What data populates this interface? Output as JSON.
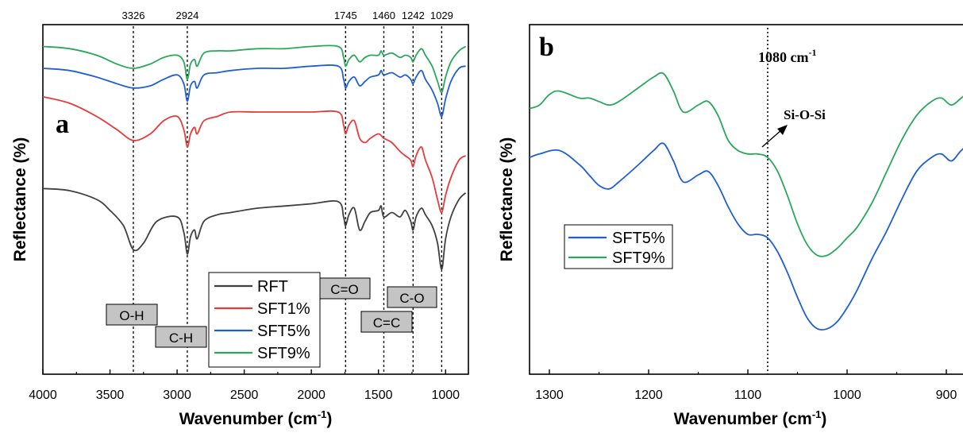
{
  "chart_data": [
    {
      "panel_label": "a",
      "type": "line",
      "xlabel": "Wavenumber (cm",
      "xlabel_sup": "-1",
      "xlabel_tail": ")",
      "ylabel": "Reflectance (%)",
      "xlim": [
        4000,
        830
      ],
      "x_reversed": true,
      "xticks": [
        "4000",
        "3500",
        "3000",
        "2500",
        "2000",
        "1500",
        "1000"
      ],
      "y_ticks_shown": false,
      "legend": {
        "placement": "lower-center",
        "entries": [
          "RFT",
          "SFT1%",
          "SFT5%",
          "SFT9%"
        ]
      },
      "series": [
        {
          "name": "RFT",
          "color": "#404040",
          "points": [
            [
              4000,
              85
            ],
            [
              3800,
              84
            ],
            [
              3600,
              80
            ],
            [
              3500,
              75
            ],
            [
              3400,
              68
            ],
            [
              3326,
              57
            ],
            [
              3250,
              60
            ],
            [
              3150,
              70
            ],
            [
              3000,
              72
            ],
            [
              2950,
              65
            ],
            [
              2924,
              55
            ],
            [
              2900,
              63
            ],
            [
              2870,
              66
            ],
            [
              2850,
              62
            ],
            [
              2800,
              70
            ],
            [
              2700,
              73
            ],
            [
              2600,
              74
            ],
            [
              2400,
              76
            ],
            [
              2200,
              77
            ],
            [
              2000,
              78
            ],
            [
              1800,
              79
            ],
            [
              1760,
              72
            ],
            [
              1745,
              68
            ],
            [
              1720,
              73
            ],
            [
              1680,
              76
            ],
            [
              1640,
              66
            ],
            [
              1600,
              70
            ],
            [
              1560,
              74
            ],
            [
              1500,
              75
            ],
            [
              1480,
              77
            ],
            [
              1460,
              72
            ],
            [
              1400,
              74
            ],
            [
              1340,
              72
            ],
            [
              1300,
              75
            ],
            [
              1260,
              70
            ],
            [
              1242,
              66
            ],
            [
              1220,
              72
            ],
            [
              1180,
              76
            ],
            [
              1150,
              73
            ],
            [
              1100,
              68
            ],
            [
              1060,
              60
            ],
            [
              1029,
              48
            ],
            [
              1000,
              62
            ],
            [
              960,
              72
            ],
            [
              900,
              80
            ],
            [
              850,
              83
            ]
          ]
        },
        {
          "name": "SFT1%",
          "color": "#e63b3b",
          "points": [
            [
              4000,
              127
            ],
            [
              3800,
              124
            ],
            [
              3600,
              118
            ],
            [
              3450,
              112
            ],
            [
              3326,
              107
            ],
            [
              3200,
              110
            ],
            [
              3100,
              116
            ],
            [
              3000,
              118
            ],
            [
              2950,
              112
            ],
            [
              2924,
              104
            ],
            [
              2900,
              110
            ],
            [
              2870,
              113
            ],
            [
              2850,
              110
            ],
            [
              2800,
              116
            ],
            [
              2700,
              118
            ],
            [
              2600,
              120
            ],
            [
              2400,
              120
            ],
            [
              2200,
              120
            ],
            [
              2000,
              120
            ],
            [
              1800,
              120
            ],
            [
              1760,
              114
            ],
            [
              1745,
              110
            ],
            [
              1720,
              114
            ],
            [
              1680,
              116
            ],
            [
              1640,
              108
            ],
            [
              1600,
              106
            ],
            [
              1560,
              108
            ],
            [
              1500,
              110
            ],
            [
              1460,
              108
            ],
            [
              1400,
              106
            ],
            [
              1340,
              102
            ],
            [
              1300,
              100
            ],
            [
              1260,
              98
            ],
            [
              1242,
              95
            ],
            [
              1220,
              100
            ],
            [
              1180,
              104
            ],
            [
              1150,
              98
            ],
            [
              1100,
              90
            ],
            [
              1060,
              80
            ],
            [
              1029,
              74
            ],
            [
              1000,
              82
            ],
            [
              960,
              90
            ],
            [
              900,
              98
            ],
            [
              850,
              100
            ]
          ]
        },
        {
          "name": "SFT5%",
          "color": "#1f5fd6",
          "points": [
            [
              4000,
              140
            ],
            [
              3800,
              139
            ],
            [
              3600,
              136
            ],
            [
              3450,
              133
            ],
            [
              3326,
              131
            ],
            [
              3200,
              132
            ],
            [
              3100,
              135
            ],
            [
              3000,
              137
            ],
            [
              2950,
              133
            ],
            [
              2924,
              125
            ],
            [
              2900,
              132
            ],
            [
              2870,
              134
            ],
            [
              2850,
              131
            ],
            [
              2800,
              137
            ],
            [
              2700,
              138
            ],
            [
              2600,
              139
            ],
            [
              2400,
              140
            ],
            [
              2200,
              140
            ],
            [
              2000,
              141
            ],
            [
              1800,
              141
            ],
            [
              1760,
              135
            ],
            [
              1745,
              131
            ],
            [
              1720,
              134
            ],
            [
              1680,
              136
            ],
            [
              1640,
              132
            ],
            [
              1600,
              134
            ],
            [
              1560,
              136
            ],
            [
              1500,
              137
            ],
            [
              1480,
              139
            ],
            [
              1460,
              137
            ],
            [
              1400,
              138
            ],
            [
              1340,
              136
            ],
            [
              1300,
              137
            ],
            [
              1260,
              135
            ],
            [
              1242,
              133
            ],
            [
              1220,
              136
            ],
            [
              1180,
              139
            ],
            [
              1150,
              135
            ],
            [
              1100,
              130
            ],
            [
              1060,
              124
            ],
            [
              1029,
              118
            ],
            [
              1000,
              126
            ],
            [
              960,
              134
            ],
            [
              900,
              140
            ],
            [
              850,
              141
            ]
          ]
        },
        {
          "name": "SFT9%",
          "color": "#2aa85a",
          "points": [
            [
              4000,
              150
            ],
            [
              3800,
              149
            ],
            [
              3600,
              146
            ],
            [
              3450,
              142
            ],
            [
              3326,
              140
            ],
            [
              3200,
              142
            ],
            [
              3100,
              145
            ],
            [
              3000,
              146
            ],
            [
              2950,
              143
            ],
            [
              2924,
              135
            ],
            [
              2900,
              142
            ],
            [
              2870,
              144
            ],
            [
              2850,
              141
            ],
            [
              2800,
              147
            ],
            [
              2700,
              148
            ],
            [
              2600,
              148
            ],
            [
              2400,
              149
            ],
            [
              2200,
              149
            ],
            [
              2000,
              150
            ],
            [
              1800,
              150
            ],
            [
              1760,
              145
            ],
            [
              1745,
              141
            ],
            [
              1720,
              144
            ],
            [
              1680,
              146
            ],
            [
              1640,
              143
            ],
            [
              1600,
              145
            ],
            [
              1560,
              146
            ],
            [
              1500,
              146
            ],
            [
              1480,
              148
            ],
            [
              1460,
              146
            ],
            [
              1400,
              147
            ],
            [
              1340,
              145
            ],
            [
              1300,
              146
            ],
            [
              1260,
              145
            ],
            [
              1242,
              143
            ],
            [
              1220,
              146
            ],
            [
              1180,
              149
            ],
            [
              1150,
              146
            ],
            [
              1100,
              141
            ],
            [
              1060,
              134
            ],
            [
              1029,
              129
            ],
            [
              1000,
              136
            ],
            [
              960,
              143
            ],
            [
              900,
              148
            ],
            [
              850,
              150
            ]
          ]
        }
      ],
      "annotations": {
        "peak_lines": [
          3326,
          2924,
          1745,
          1460,
          1242,
          1029
        ],
        "top_labels": [
          "3326",
          "2924",
          "1745",
          "1460",
          "1242",
          "1029"
        ],
        "boxes": [
          "O-H",
          "C-H",
          "C=O",
          "C=C",
          "C-O"
        ]
      }
    },
    {
      "panel_label": "b",
      "type": "line",
      "xlabel": "Wavenumber (cm",
      "xlabel_sup": "-1",
      "xlabel_tail": ")",
      "ylabel": "Reflectance (%)",
      "xlim": [
        1320,
        872
      ],
      "x_reversed": true,
      "xticks": [
        "1300",
        "1200",
        "1100",
        "1000",
        "900"
      ],
      "y_ticks_shown": false,
      "legend": {
        "placement": "lower-left",
        "entries": [
          "SFT5%",
          "SFT9%"
        ]
      },
      "series": [
        {
          "name": "SFT5%",
          "color": "#1f5fd6",
          "points": [
            [
              1320,
              62
            ],
            [
              1310,
              63
            ],
            [
              1290,
              64
            ],
            [
              1270,
              60
            ],
            [
              1260,
              57
            ],
            [
              1250,
              54
            ],
            [
              1240,
              53
            ],
            [
              1230,
              55
            ],
            [
              1210,
              60
            ],
            [
              1195,
              64
            ],
            [
              1185,
              66
            ],
            [
              1175,
              61
            ],
            [
              1165,
              55
            ],
            [
              1150,
              57
            ],
            [
              1140,
              58
            ],
            [
              1130,
              54
            ],
            [
              1120,
              48
            ],
            [
              1110,
              43
            ],
            [
              1100,
              40
            ],
            [
              1090,
              40
            ],
            [
              1080,
              39
            ],
            [
              1070,
              35
            ],
            [
              1060,
              29
            ],
            [
              1050,
              22
            ],
            [
              1040,
              16
            ],
            [
              1030,
              13
            ],
            [
              1020,
              13
            ],
            [
              1010,
              15
            ],
            [
              1000,
              19
            ],
            [
              990,
              24
            ],
            [
              975,
              33
            ],
            [
              960,
              41
            ],
            [
              945,
              50
            ],
            [
              930,
              58
            ],
            [
              915,
              62
            ],
            [
              905,
              63
            ],
            [
              895,
              61
            ],
            [
              885,
              64
            ],
            [
              872,
              67
            ]
          ]
        },
        {
          "name": "SFT9%",
          "color": "#2aa85a",
          "points": [
            [
              1320,
              76
            ],
            [
              1310,
              77
            ],
            [
              1300,
              80
            ],
            [
              1290,
              81
            ],
            [
              1270,
              79
            ],
            [
              1260,
              79
            ],
            [
              1250,
              78
            ],
            [
              1240,
              77
            ],
            [
              1230,
              78
            ],
            [
              1210,
              82
            ],
            [
              1195,
              85
            ],
            [
              1185,
              86
            ],
            [
              1175,
              81
            ],
            [
              1165,
              75
            ],
            [
              1150,
              77
            ],
            [
              1140,
              78
            ],
            [
              1130,
              74
            ],
            [
              1120,
              67
            ],
            [
              1110,
              64
            ],
            [
              1100,
              63
            ],
            [
              1090,
              63
            ],
            [
              1080,
              62
            ],
            [
              1070,
              58
            ],
            [
              1060,
              51
            ],
            [
              1050,
              43
            ],
            [
              1040,
              37
            ],
            [
              1030,
              34
            ],
            [
              1020,
              34
            ],
            [
              1010,
              36
            ],
            [
              1000,
              39
            ],
            [
              990,
              42
            ],
            [
              975,
              49
            ],
            [
              960,
              58
            ],
            [
              945,
              67
            ],
            [
              930,
              74
            ],
            [
              915,
              78
            ],
            [
              905,
              79
            ],
            [
              895,
              77
            ],
            [
              885,
              79
            ],
            [
              872,
              82
            ]
          ]
        }
      ],
      "annotations": {
        "vline": 1080,
        "vline_label": "1080 cm",
        "vline_label_sup": "-1",
        "arrow_label": "Si-O-Si"
      }
    }
  ]
}
